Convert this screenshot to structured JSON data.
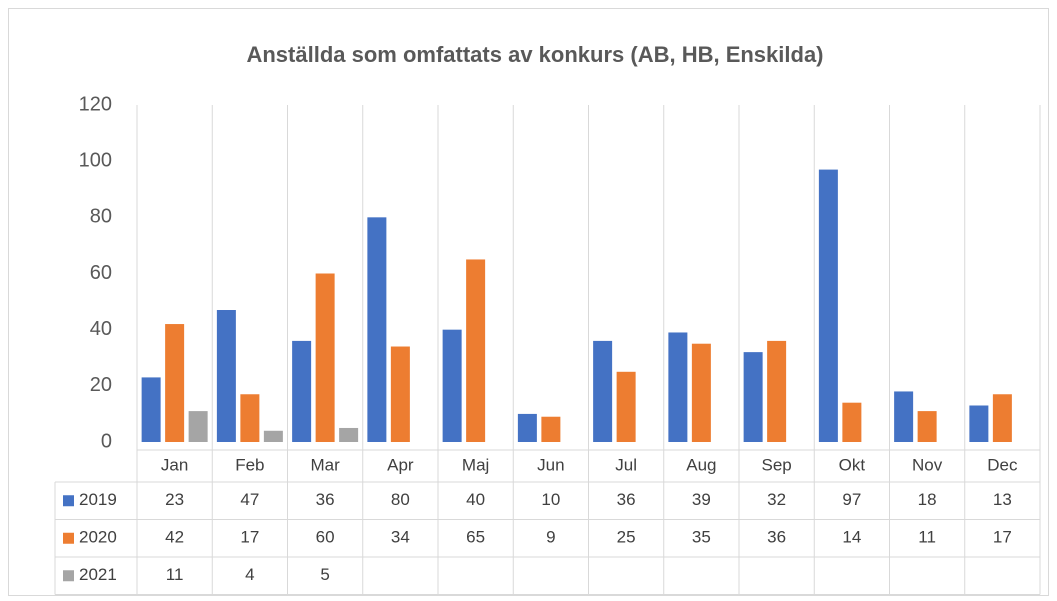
{
  "chart_data": {
    "type": "bar",
    "title": "Anställda som omfattats av konkurs (AB, HB, Enskilda)",
    "categories": [
      "Jan",
      "Feb",
      "Mar",
      "Apr",
      "Maj",
      "Jun",
      "Jul",
      "Aug",
      "Sep",
      "Okt",
      "Nov",
      "Dec"
    ],
    "series": [
      {
        "name": "2019",
        "color": "#4472c4",
        "values": [
          23,
          47,
          36,
          80,
          40,
          10,
          36,
          39,
          32,
          97,
          18,
          13
        ]
      },
      {
        "name": "2020",
        "color": "#ed7d31",
        "values": [
          42,
          17,
          60,
          34,
          65,
          9,
          25,
          35,
          36,
          14,
          11,
          17
        ]
      },
      {
        "name": "2021",
        "color": "#a5a5a5",
        "values": [
          11,
          4,
          5,
          null,
          null,
          null,
          null,
          null,
          null,
          null,
          null,
          null
        ]
      }
    ],
    "ylim": [
      0,
      120
    ],
    "yticks": [
      0,
      20,
      40,
      60,
      80,
      100,
      120
    ]
  }
}
